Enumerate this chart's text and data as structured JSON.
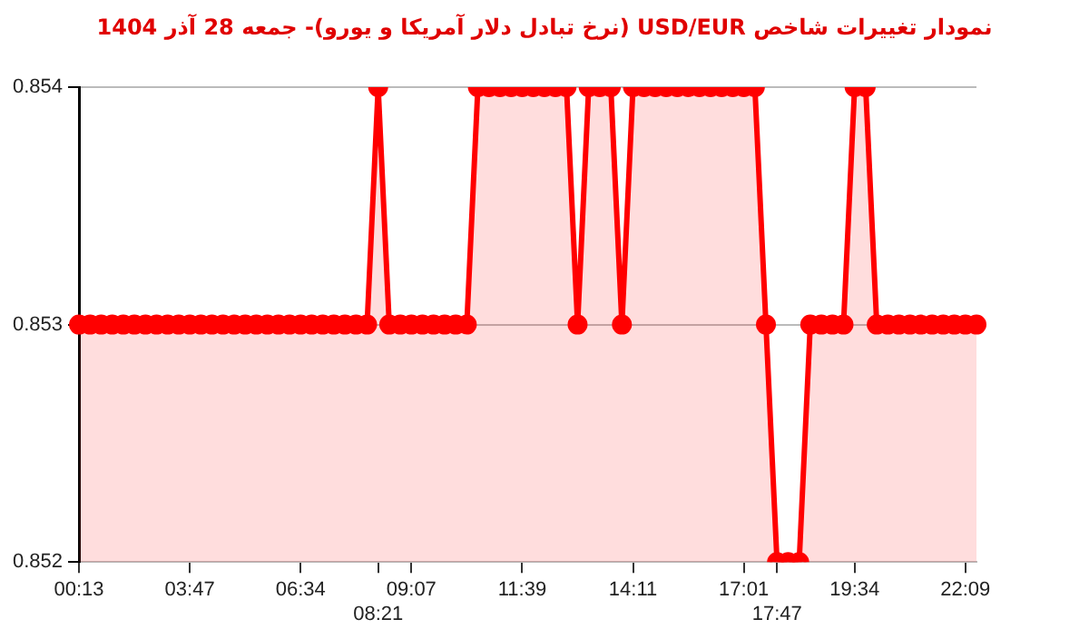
{
  "chart_data": {
    "type": "area",
    "title": "نمودار تغییرات شاخص USD/EUR (نرخ تبادل دلار آمریکا و یورو)- جمعه  28 آذر 1404",
    "categories": [
      "00:13",
      null,
      null,
      null,
      null,
      null,
      null,
      null,
      null,
      null,
      "03:47",
      null,
      null,
      null,
      null,
      null,
      null,
      null,
      null,
      null,
      "06:34",
      null,
      null,
      null,
      null,
      null,
      null,
      "08:21",
      null,
      null,
      "09:07",
      null,
      null,
      null,
      null,
      null,
      null,
      null,
      null,
      null,
      "11:39",
      null,
      null,
      null,
      null,
      null,
      null,
      null,
      null,
      null,
      "14:11",
      null,
      null,
      null,
      null,
      null,
      null,
      null,
      null,
      null,
      "17:01",
      null,
      null,
      "17:47",
      null,
      null,
      null,
      null,
      null,
      null,
      "19:34",
      null,
      null,
      null,
      null,
      null,
      null,
      null,
      null,
      null,
      "22:09",
      null
    ],
    "series": [
      {
        "color": "#ff0000",
        "values": [
          0.853,
          0.853,
          0.853,
          0.853,
          0.853,
          0.853,
          0.853,
          0.853,
          0.853,
          0.853,
          0.853,
          0.853,
          0.853,
          0.853,
          0.853,
          0.853,
          0.853,
          0.853,
          0.853,
          0.853,
          0.853,
          0.853,
          0.853,
          0.853,
          0.853,
          0.853,
          0.853,
          0.854,
          0.853,
          0.853,
          0.853,
          0.853,
          0.853,
          0.853,
          0.853,
          0.853,
          0.854,
          0.854,
          0.854,
          0.854,
          0.854,
          0.854,
          0.854,
          0.854,
          0.854,
          0.853,
          0.854,
          0.854,
          0.854,
          0.853,
          0.854,
          0.854,
          0.854,
          0.854,
          0.854,
          0.854,
          0.854,
          0.854,
          0.854,
          0.854,
          0.854,
          0.854,
          0.853,
          0.852,
          0.852,
          0.852,
          0.853,
          0.853,
          0.853,
          0.853,
          0.854,
          0.854,
          0.853,
          0.853,
          0.853,
          0.853,
          0.853,
          0.853,
          0.853,
          0.853,
          0.853,
          0.853
        ]
      }
    ],
    "ylim": [
      0.852,
      0.854
    ],
    "yticks": [
      0.852,
      0.853,
      0.854
    ],
    "grid": "y",
    "marker": "circle",
    "legend": false
  }
}
